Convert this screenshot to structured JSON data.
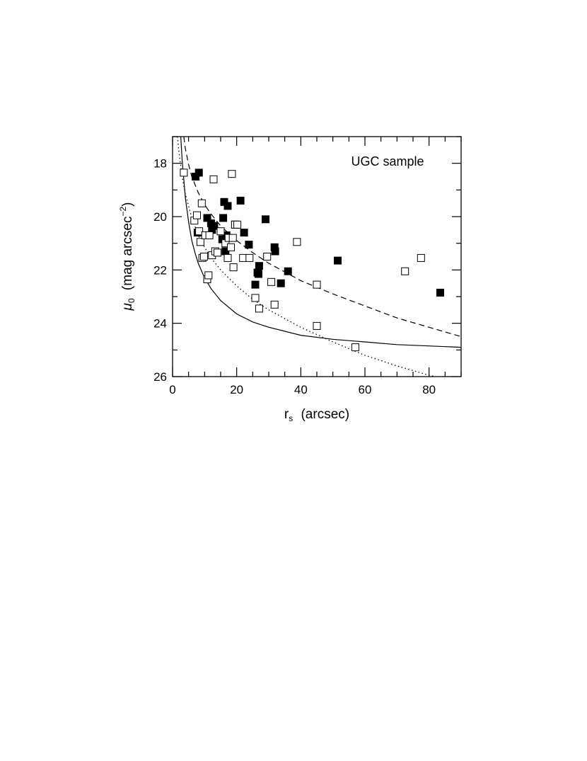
{
  "chart_data": {
    "type": "scatter",
    "annotation": "UGC sample",
    "xlabel": {
      "symbol": "r",
      "sub": "s",
      "text": "(arcsec)"
    },
    "ylabel": {
      "symbol": "μ",
      "sub": "0",
      "text": "(mag  arcsec",
      "sup": "−2",
      "close": ")"
    },
    "xlim": [
      0,
      90
    ],
    "ylim": [
      26,
      17
    ],
    "y_inverted": true,
    "xticks": [
      0,
      20,
      40,
      60,
      80
    ],
    "yticks": [
      18,
      20,
      22,
      24,
      26
    ],
    "x_minor_step": 5,
    "y_minor_step": 1,
    "series": [
      {
        "marker": "filled-square",
        "points": [
          [
            7.2,
            18.5
          ],
          [
            8.2,
            18.35
          ],
          [
            7.8,
            20.6
          ],
          [
            10.8,
            20.05
          ],
          [
            12.0,
            20.25
          ],
          [
            12.3,
            20.5
          ],
          [
            13.0,
            20.35
          ],
          [
            15.5,
            20.85
          ],
          [
            15.8,
            20.05
          ],
          [
            16.1,
            19.45
          ],
          [
            16.8,
            20.7
          ],
          [
            16.5,
            21.3
          ],
          [
            17.2,
            19.6
          ],
          [
            19.5,
            20.3
          ],
          [
            21.2,
            19.4
          ],
          [
            22.3,
            20.6
          ],
          [
            23.8,
            21.05
          ],
          [
            25.8,
            22.55
          ],
          [
            26.5,
            22.1
          ],
          [
            26.8,
            22.15
          ],
          [
            27.0,
            21.85
          ],
          [
            29.0,
            20.1
          ],
          [
            31.8,
            21.15
          ],
          [
            32.0,
            21.3
          ],
          [
            33.8,
            22.5
          ],
          [
            36.0,
            22.05
          ],
          [
            51.5,
            21.65
          ],
          [
            83.5,
            22.85
          ]
        ]
      },
      {
        "marker": "open-square",
        "points": [
          [
            3.5,
            18.35
          ],
          [
            6.8,
            20.15
          ],
          [
            7.6,
            19.95
          ],
          [
            8.3,
            20.55
          ],
          [
            8.7,
            20.95
          ],
          [
            9.1,
            19.5
          ],
          [
            9.3,
            21.55
          ],
          [
            9.8,
            21.5
          ],
          [
            10.2,
            20.7
          ],
          [
            10.8,
            22.35
          ],
          [
            11.2,
            22.2
          ],
          [
            11.5,
            20.7
          ],
          [
            12.3,
            21.45
          ],
          [
            12.8,
            18.6
          ],
          [
            13.3,
            21.3
          ],
          [
            14.0,
            21.35
          ],
          [
            15.0,
            20.55
          ],
          [
            16.5,
            21.0
          ],
          [
            17.2,
            21.55
          ],
          [
            17.5,
            20.8
          ],
          [
            18.2,
            21.15
          ],
          [
            18.8,
            20.8
          ],
          [
            18.5,
            18.4
          ],
          [
            19.0,
            21.9
          ],
          [
            19.5,
            20.3
          ],
          [
            20.2,
            20.3
          ],
          [
            22.0,
            21.55
          ],
          [
            24.0,
            21.55
          ],
          [
            25.8,
            23.05
          ],
          [
            27.0,
            23.45
          ],
          [
            29.5,
            21.5
          ],
          [
            30.8,
            22.45
          ],
          [
            31.8,
            23.3
          ],
          [
            38.8,
            20.95
          ],
          [
            45.0,
            22.55
          ],
          [
            45.0,
            24.1
          ],
          [
            57.0,
            24.9
          ],
          [
            72.5,
            22.05
          ],
          [
            77.5,
            21.55
          ]
        ]
      }
    ],
    "curves": [
      {
        "style": "solid",
        "points": [
          [
            2.55,
            17
          ],
          [
            3,
            17.9
          ],
          [
            4,
            19.3
          ],
          [
            5,
            20.2
          ],
          [
            6,
            20.9
          ],
          [
            7,
            21.35
          ],
          [
            8,
            21.75
          ],
          [
            10,
            22.3
          ],
          [
            12,
            22.7
          ],
          [
            15,
            23.15
          ],
          [
            20,
            23.65
          ],
          [
            25,
            23.95
          ],
          [
            30,
            24.15
          ],
          [
            40,
            24.45
          ],
          [
            50,
            24.6
          ],
          [
            60,
            24.7
          ],
          [
            70,
            24.8
          ],
          [
            80,
            24.85
          ],
          [
            90,
            24.9
          ]
        ]
      },
      {
        "style": "dashed",
        "points": [
          [
            3.5,
            17
          ],
          [
            4,
            17.45
          ],
          [
            5,
            18.05
          ],
          [
            6,
            18.5
          ],
          [
            8,
            19.1
          ],
          [
            10,
            19.55
          ],
          [
            12,
            19.9
          ],
          [
            15,
            20.35
          ],
          [
            20,
            20.9
          ],
          [
            25,
            21.35
          ],
          [
            30,
            21.75
          ],
          [
            40,
            22.4
          ],
          [
            50,
            22.9
          ],
          [
            60,
            23.35
          ],
          [
            70,
            23.8
          ],
          [
            80,
            24.15
          ],
          [
            90,
            24.5
          ]
        ]
      },
      {
        "style": "dotted",
        "points": [
          [
            1.5,
            17
          ],
          [
            2,
            17.6
          ],
          [
            3,
            18.5
          ],
          [
            4,
            19.15
          ],
          [
            6,
            20.05
          ],
          [
            8,
            20.7
          ],
          [
            10,
            21.15
          ],
          [
            12,
            21.55
          ],
          [
            15,
            22.0
          ],
          [
            20,
            22.6
          ],
          [
            25,
            23.1
          ],
          [
            30,
            23.5
          ],
          [
            40,
            24.15
          ],
          [
            50,
            24.7
          ],
          [
            60,
            25.2
          ],
          [
            70,
            25.6
          ],
          [
            80,
            25.95
          ],
          [
            82,
            26
          ]
        ]
      }
    ]
  }
}
